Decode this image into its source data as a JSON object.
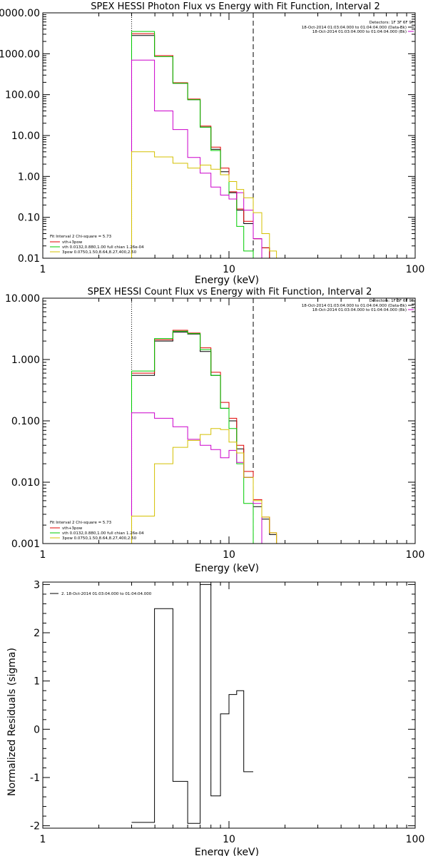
{
  "colors": {
    "data": "#000000",
    "total": "#e00000",
    "vth": "#00cc00",
    "thermal": "#cc00cc",
    "bpow": "#d4c000",
    "axis": "#000000"
  },
  "chart_data": [
    {
      "type": "line",
      "title": "SPEX HESSI Photon Flux vs Energy with Fit Function, Interval 2",
      "xlabel": "Energy (keV)",
      "ylabel": "",
      "xscale": "log",
      "yscale": "log",
      "xlim": [
        1,
        100
      ],
      "ylim": [
        0.01,
        10000
      ],
      "xticks": [
        {
          "v": 1,
          "label": "1"
        },
        {
          "v": 10,
          "label": "10"
        },
        {
          "v": 100,
          "label": "100"
        }
      ],
      "yticks": [
        {
          "v": 10000,
          "label": "10000.00"
        },
        {
          "v": 1000,
          "label": "1000.00"
        },
        {
          "v": 100,
          "label": "100.00"
        },
        {
          "v": 10,
          "label": "10.00"
        },
        {
          "v": 1,
          "label": "1.00"
        },
        {
          "v": 0.1,
          "label": "0.10"
        },
        {
          "v": 0.01,
          "label": "0.01"
        }
      ],
      "vlines": [
        {
          "x": 3.0,
          "style": "dotted"
        },
        {
          "x": 13.5,
          "style": "dashed"
        }
      ],
      "header_lines": [
        "Detectors: 1F 3F 6F 9F",
        "18-Oct-2014 01:03:04.000 to 01:04:04.000 (Data-Bk)",
        "18-Oct-2014 01:03:04.000 to 01:04:04.000 (Bk)"
      ],
      "legend": {
        "title": "Fit Interval 2   Chi-square = 5.73",
        "entries": [
          {
            "color": "total",
            "label": "vth+3pow"
          },
          {
            "color": "vth",
            "label": "vth 0.0132,0.880,1.00  full chian 1.26e-04"
          },
          {
            "color": "bpow",
            "label": "3pow 0.0750,1.50,8.64,8.27,400,2.50"
          }
        ]
      },
      "edges": [
        3.0,
        3.98,
        5.0,
        6.0,
        7.0,
        8.0,
        9.0,
        10.0,
        11.0,
        12.0,
        13.5,
        15.0,
        16.5,
        18.0
      ],
      "series": [
        {
          "key": "data",
          "values": [
            2800,
            900,
            190,
            75,
            16,
            4.6,
            1.3,
            0.4,
            0.15,
            0.07,
            0.03,
            0.018,
            null
          ]
        },
        {
          "key": "total",
          "values": [
            3100,
            900,
            195,
            78,
            17,
            5.2,
            1.6,
            0.42,
            0.16,
            0.08,
            0.03,
            0.018,
            null
          ]
        },
        {
          "key": "vth",
          "values": [
            3500,
            850,
            190,
            75,
            16,
            4.3,
            1.1,
            0.28,
            0.06,
            0.015,
            null,
            null,
            null
          ]
        },
        {
          "key": "thermal",
          "values": [
            700,
            40,
            14,
            2.9,
            1.2,
            0.55,
            0.35,
            0.28,
            0.4,
            0.15,
            0.03,
            null,
            null
          ]
        },
        {
          "key": "bpow",
          "values": [
            4.0,
            3.0,
            2.1,
            1.6,
            1.9,
            1.5,
            1.1,
            0.75,
            0.48,
            0.3,
            0.13,
            0.04,
            0.015
          ]
        }
      ]
    },
    {
      "type": "line",
      "title": "SPEX HESSI Count Flux vs Energy with Fit Function, Interval 2",
      "xlabel": "Energy (keV)",
      "ylabel": "",
      "xscale": "log",
      "yscale": "log",
      "xlim": [
        1,
        100
      ],
      "ylim": [
        0.001,
        10
      ],
      "xticks": [
        {
          "v": 1,
          "label": "1"
        },
        {
          "v": 10,
          "label": "10"
        },
        {
          "v": 100,
          "label": "100"
        }
      ],
      "yticks": [
        {
          "v": 10,
          "label": "10.000"
        },
        {
          "v": 1,
          "label": "1.000"
        },
        {
          "v": 0.1,
          "label": "0.100"
        },
        {
          "v": 0.01,
          "label": "0.010"
        },
        {
          "v": 0.001,
          "label": "0.001"
        }
      ],
      "vlines": [
        {
          "x": 3.0,
          "style": "dotted"
        },
        {
          "x": 13.5,
          "style": "dashed"
        }
      ],
      "header_lines": [
        "Detectors: 1F 3F 6F 9F",
        "18-Oct-2014 01:03:04.000 to 01:04:04.000 (Data-Bk)",
        "18-Oct-2014 01:03:04.000 to 01:04:04.000 (Bk)"
      ],
      "legend": {
        "title": "Fit Interval 2   Chi-square = 5.73",
        "entries": [
          {
            "color": "total",
            "label": "vth+3pow"
          },
          {
            "color": "vth",
            "label": "vth 0.0132,0.880,1.00  full chian 1.26e-04"
          },
          {
            "color": "bpow",
            "label": "3pow 0.0750,1.50,8.64,8.27,400,2.50"
          }
        ]
      },
      "edges": [
        3.0,
        3.98,
        5.0,
        6.0,
        7.0,
        8.0,
        9.0,
        10.0,
        11.0,
        12.0,
        13.5,
        15.0,
        16.5,
        18.0
      ],
      "series": [
        {
          "key": "data",
          "values": [
            0.55,
            2.0,
            2.8,
            2.6,
            1.35,
            0.55,
            0.16,
            0.1,
            0.035,
            0.012,
            0.004,
            0.0025,
            0.0014
          ]
        },
        {
          "key": "total",
          "values": [
            0.6,
            2.1,
            3.0,
            2.7,
            1.55,
            0.62,
            0.2,
            0.11,
            0.04,
            0.015,
            0.0052,
            0.0027,
            0.0015
          ]
        },
        {
          "key": "vth",
          "values": [
            0.65,
            2.2,
            2.9,
            2.65,
            1.45,
            0.55,
            0.16,
            0.075,
            0.02,
            0.0045,
            null,
            null,
            null
          ]
        },
        {
          "key": "thermal",
          "values": [
            0.135,
            0.11,
            0.08,
            0.05,
            0.04,
            0.034,
            0.025,
            0.033,
            0.021,
            0.012,
            0.0045,
            null,
            null
          ]
        },
        {
          "key": "bpow",
          "values": [
            0.0028,
            0.02,
            0.037,
            0.048,
            0.06,
            0.075,
            0.072,
            0.045,
            0.03,
            0.012,
            0.005,
            0.0027,
            0.0015
          ]
        }
      ]
    },
    {
      "type": "line",
      "title": "",
      "xlabel": "Energy (keV)",
      "ylabel": "Normalized Residuals (sigma)",
      "xscale": "log",
      "yscale": "linear",
      "xlim": [
        1,
        100
      ],
      "ylim": [
        -2.05,
        3.05
      ],
      "xticks": [
        {
          "v": 1,
          "label": "1"
        },
        {
          "v": 10,
          "label": "10"
        },
        {
          "v": 100,
          "label": "100"
        }
      ],
      "yticks": [
        {
          "v": 3,
          "label": "3"
        },
        {
          "v": 2,
          "label": "2"
        },
        {
          "v": 1,
          "label": "1"
        },
        {
          "v": 0,
          "label": "0"
        },
        {
          "v": -1,
          "label": "-1"
        },
        {
          "v": -2,
          "label": "-2"
        }
      ],
      "legend_entry": "2. 18-Oct-2014 01:03:04.000 to 01:04:04.000",
      "edges": [
        3.0,
        3.98,
        5.0,
        6.0,
        7.0,
        8.0,
        9.0,
        10.0,
        11.0,
        12.0,
        13.5
      ],
      "series": [
        {
          "key": "data",
          "name": "2. 18-Oct-2014 01:03:04.000 to 01:04:04.000",
          "values": [
            -1.93,
            2.5,
            -1.08,
            -1.95,
            3.0,
            -1.38,
            0.32,
            0.72,
            0.8,
            -0.88
          ]
        }
      ]
    }
  ]
}
